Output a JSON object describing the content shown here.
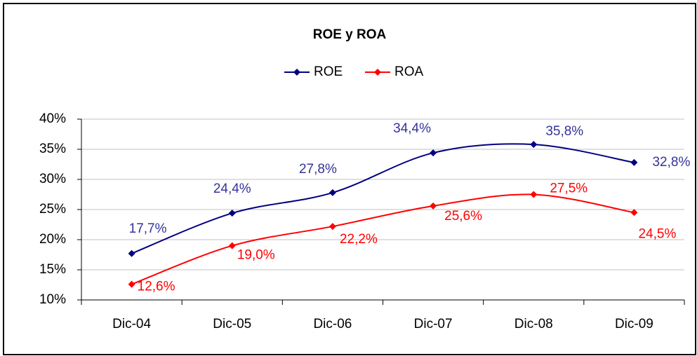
{
  "chart_data": {
    "type": "line",
    "title": "ROE y ROA",
    "categories": [
      "Dic-04",
      "Dic-05",
      "Dic-06",
      "Dic-07",
      "Dic-08",
      "Dic-09"
    ],
    "series": [
      {
        "name": "ROE",
        "color": "#000080",
        "label_color": "#333399",
        "values": [
          17.7,
          24.4,
          27.8,
          34.4,
          35.8,
          32.8
        ],
        "value_labels": [
          "17,7%",
          "24,4%",
          "27,8%",
          "34,4%",
          "35,8%",
          "32,8%"
        ]
      },
      {
        "name": "ROA",
        "color": "#ff0000",
        "label_color": "#ff0000",
        "values": [
          12.6,
          19.0,
          22.2,
          25.6,
          27.5,
          24.5
        ],
        "value_labels": [
          "12,6%",
          "19,0%",
          "22,2%",
          "25,6%",
          "27,5%",
          "24,5%"
        ]
      }
    ],
    "ylim": [
      10,
      40
    ],
    "yticks": [
      {
        "value": 10,
        "label": "10%"
      },
      {
        "value": 15,
        "label": "15%"
      },
      {
        "value": 20,
        "label": "20%"
      },
      {
        "value": 25,
        "label": "25%"
      },
      {
        "value": 30,
        "label": "30%"
      },
      {
        "value": 35,
        "label": "35%"
      },
      {
        "value": 40,
        "label": "40%"
      }
    ],
    "grid": true,
    "legend": "top",
    "smooth": true
  }
}
